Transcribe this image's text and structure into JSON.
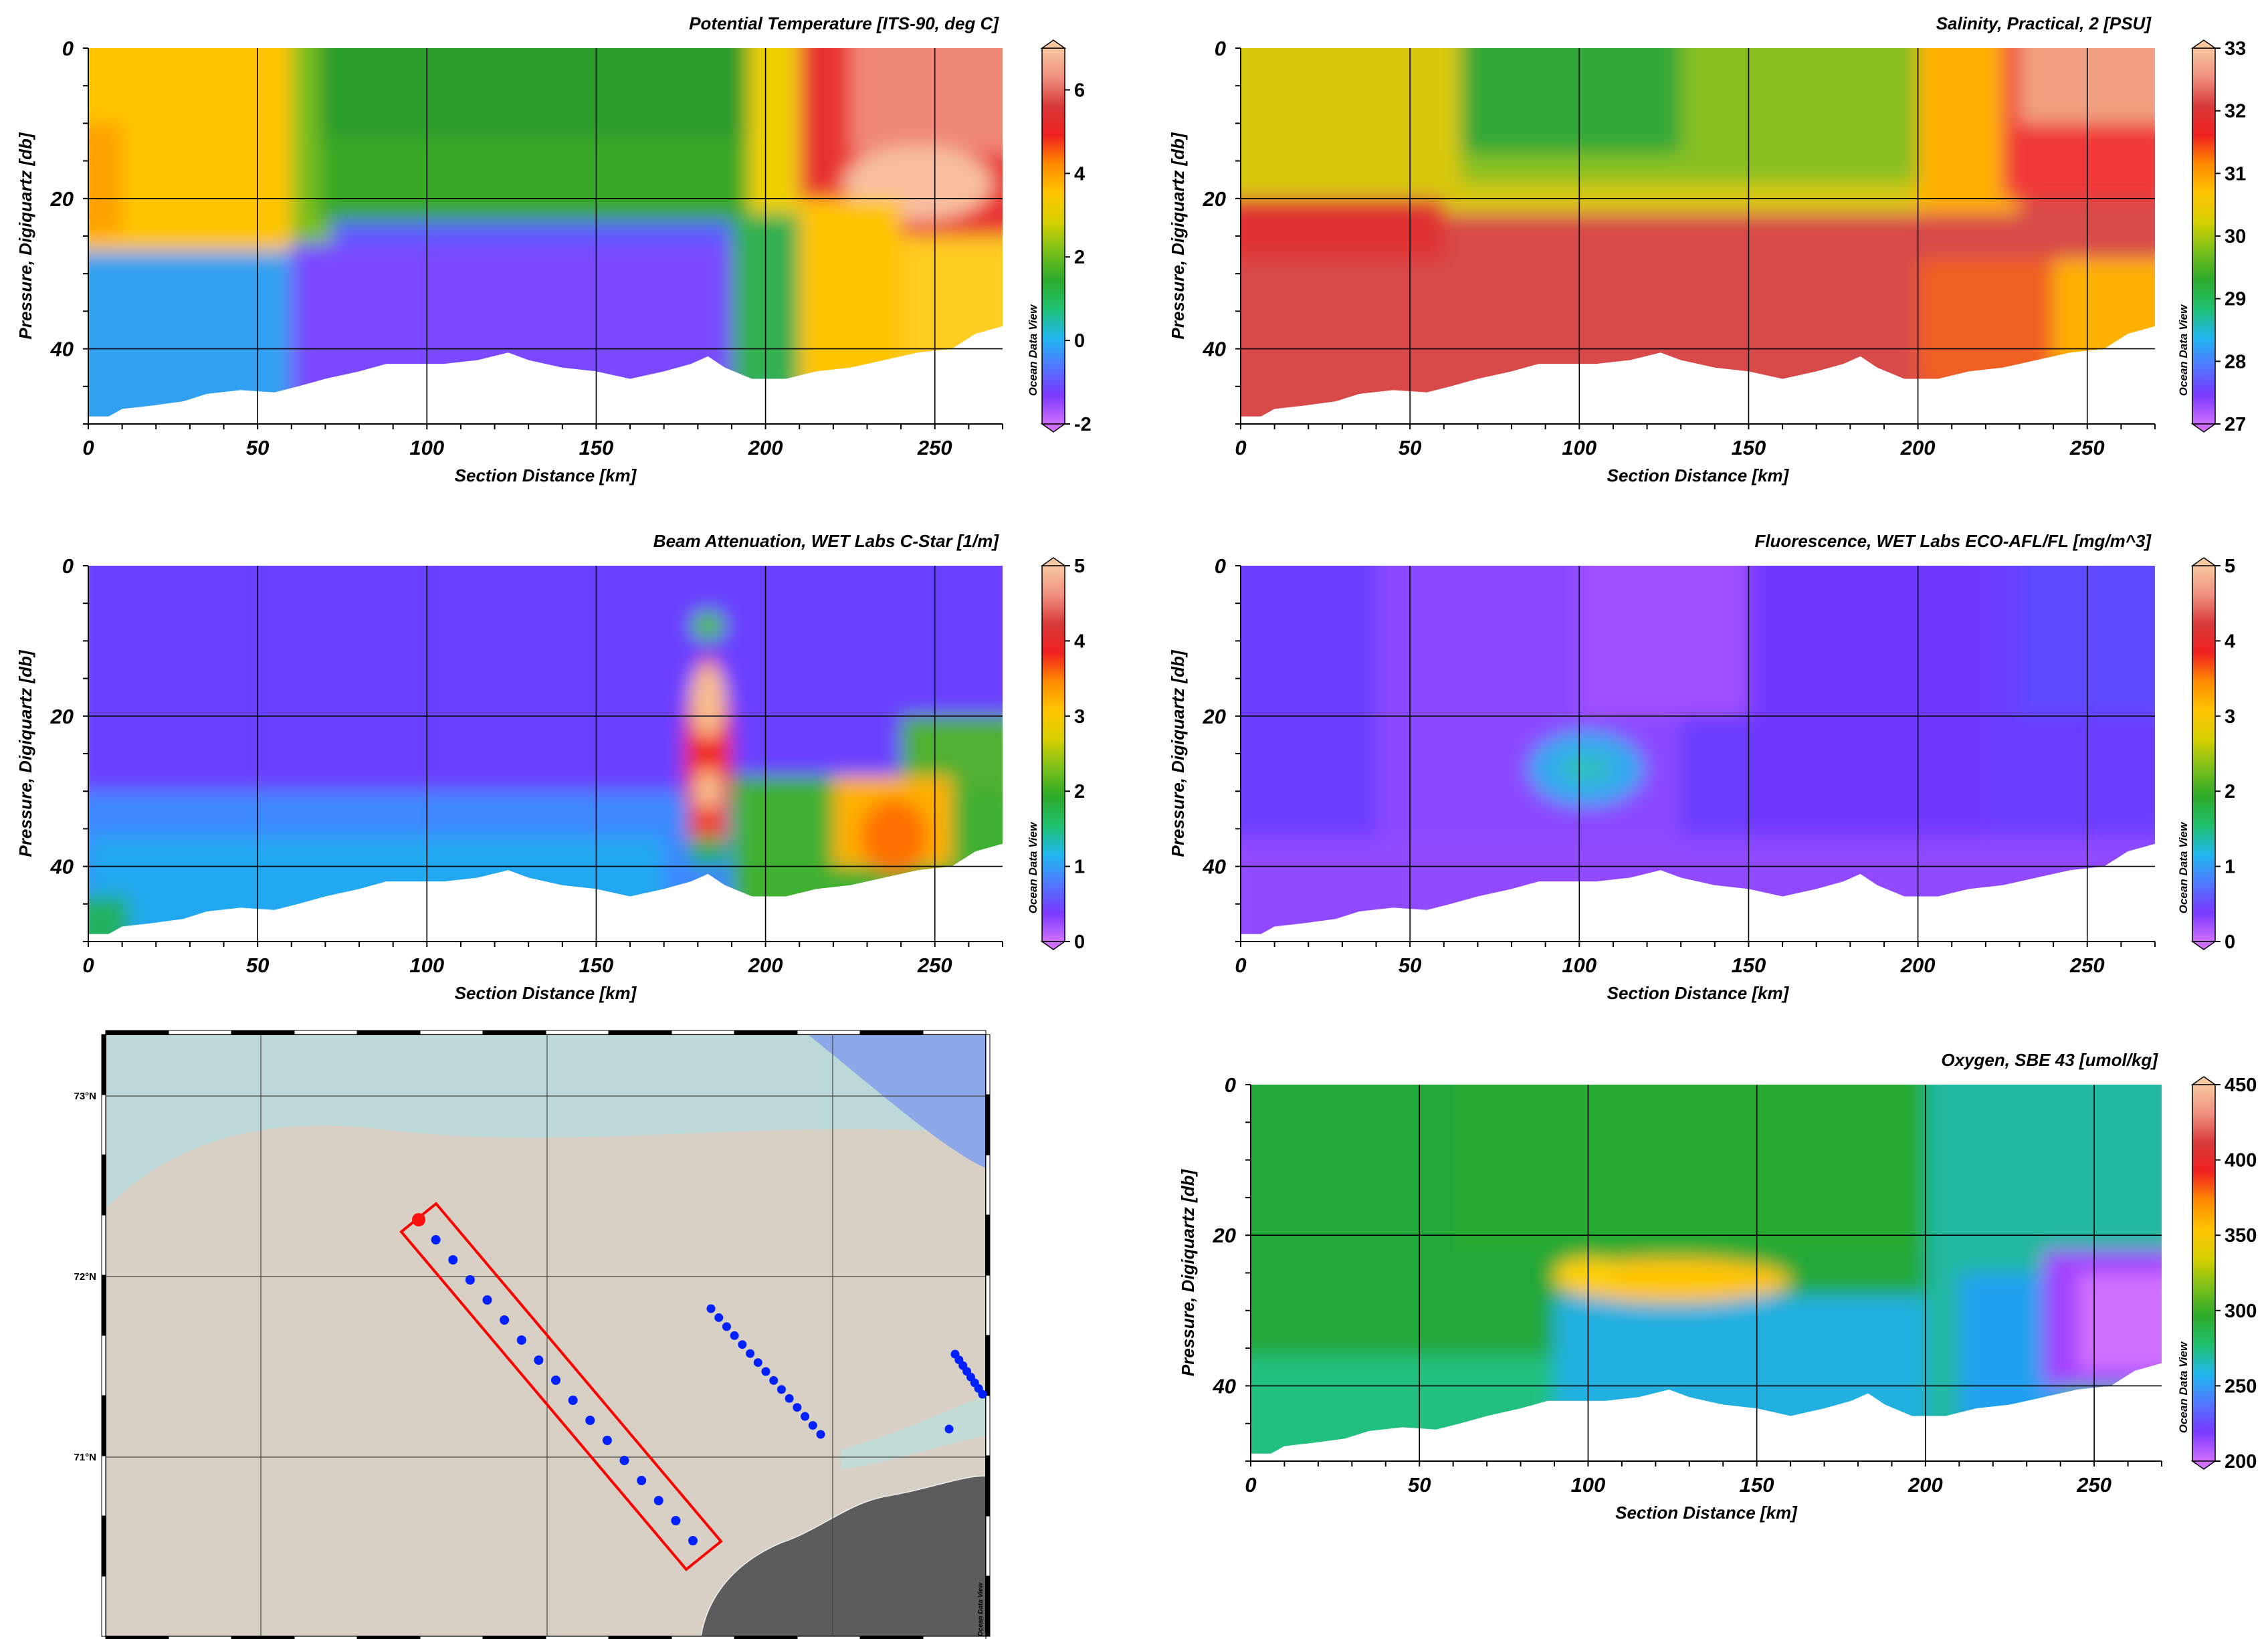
{
  "odv_label": "Ocean Data View",
  "chart_data": [
    {
      "type": "heatmap",
      "title": "Potential Temperature [ITS-90, deg C]",
      "xlabel": "Section Distance [km]",
      "ylabel": "Pressure, Digiquartz [db]",
      "xlim": [
        0,
        270
      ],
      "ylim": [
        50,
        0
      ],
      "xticks": [
        "0",
        "50",
        "100",
        "150",
        "200",
        "250"
      ],
      "yticks": [
        "0",
        "20",
        "40"
      ],
      "colorbar": {
        "min": -2,
        "max": 7,
        "ticks": [
          "-2",
          "0",
          "2",
          "4",
          "6"
        ]
      },
      "grid": true,
      "mixed_layer_depth_db": [
        [
          0,
          26
        ],
        [
          20,
          27
        ],
        [
          50,
          28
        ],
        [
          60,
          30
        ],
        [
          70,
          25
        ],
        [
          90,
          23
        ],
        [
          150,
          22
        ],
        [
          170,
          24
        ],
        [
          190,
          26
        ],
        [
          205,
          30
        ],
        [
          212,
          25
        ]
      ],
      "surface_values_degC": [
        [
          0,
          4.5
        ],
        [
          60,
          4.5
        ],
        [
          70,
          2.2
        ],
        [
          150,
          2.2
        ],
        [
          200,
          2.5
        ],
        [
          210,
          6.0
        ],
        [
          230,
          6.5
        ],
        [
          270,
          6.3
        ]
      ],
      "bottom_values_degC": [
        [
          0,
          0.5
        ],
        [
          50,
          -1.0
        ],
        [
          150,
          -1.2
        ],
        [
          190,
          2.0
        ],
        [
          200,
          2.5
        ],
        [
          210,
          4.5
        ],
        [
          270,
          4.5
        ]
      ]
    },
    {
      "type": "heatmap",
      "title": "Salinity, Practical, 2 [PSU]",
      "xlabel": "Section Distance [km]",
      "ylabel": "Pressure, Digiquartz [db]",
      "xlim": [
        0,
        270
      ],
      "ylim": [
        50,
        0
      ],
      "xticks": [
        "0",
        "50",
        "100",
        "150",
        "200",
        "250"
      ],
      "yticks": [
        "0",
        "20",
        "40"
      ],
      "colorbar": {
        "min": 27,
        "max": 33,
        "ticks": [
          "27",
          "28",
          "29",
          "30",
          "31",
          "32",
          "33"
        ]
      },
      "grid": true,
      "surface_values_psu": [
        [
          0,
          30.8
        ],
        [
          60,
          30.8
        ],
        [
          70,
          30.0
        ],
        [
          150,
          30.2
        ],
        [
          200,
          30.6
        ],
        [
          215,
          31.6
        ],
        [
          240,
          32.4
        ],
        [
          270,
          32.6
        ]
      ],
      "bottom_values_psu": [
        [
          0,
          32.0
        ],
        [
          100,
          32.2
        ],
        [
          200,
          32.0
        ],
        [
          230,
          31.5
        ],
        [
          270,
          31.0
        ]
      ]
    },
    {
      "type": "heatmap",
      "title": "Beam Attenuation, WET Labs C-Star [1/m]",
      "xlabel": "Section Distance [km]",
      "ylabel": "Pressure, Digiquartz [db]",
      "xlim": [
        0,
        270
      ],
      "ylim": [
        50,
        0
      ],
      "xticks": [
        "0",
        "50",
        "100",
        "150",
        "200",
        "250"
      ],
      "yticks": [
        "0",
        "20",
        "40"
      ],
      "colorbar": {
        "min": 0,
        "max": 5,
        "ticks": [
          "0",
          "1",
          "2",
          "3",
          "4",
          "5"
        ]
      },
      "grid": true,
      "features": [
        {
          "name": "",
          "x_km": 183,
          "depth_db": [
            14,
            36
          ],
          "value": 4.8
        },
        {
          "name": "",
          "x_km": 240,
          "depth_db": [
            28,
            38
          ],
          "value": 3.5
        }
      ],
      "background_value": 0.4,
      "bottom_value": 1.2
    },
    {
      "type": "heatmap",
      "title": "Fluorescence, WET Labs ECO-AFL/FL [mg/m^3]",
      "xlabel": "Section Distance [km]",
      "ylabel": "Pressure, Digiquartz [db]",
      "xlim": [
        0,
        270
      ],
      "ylim": [
        50,
        0
      ],
      "xticks": [
        "0",
        "50",
        "100",
        "150",
        "200",
        "250"
      ],
      "yticks": [
        "0",
        "20",
        "40"
      ],
      "colorbar": {
        "min": 0,
        "max": 5,
        "ticks": [
          "0",
          "1",
          "2",
          "3",
          "4",
          "5"
        ]
      },
      "grid": true,
      "features": [
        {
          "name": "",
          "x_km": 102,
          "depth_db": [
            24,
            30
          ],
          "value": 1.3
        }
      ],
      "background_value": 0.4
    },
    {
      "type": "heatmap",
      "title": "Oxygen, SBE 43 [umol/kg]",
      "xlabel": "Section Distance [km]",
      "ylabel": "Pressure, Digiquartz [db]",
      "xlim": [
        0,
        270
      ],
      "ylim": [
        50,
        0
      ],
      "xticks": [
        "0",
        "50",
        "100",
        "150",
        "200",
        "250"
      ],
      "yticks": [
        "0",
        "20",
        "40"
      ],
      "colorbar": {
        "min": 200,
        "max": 450,
        "ticks": [
          "200",
          "250",
          "300",
          "350",
          "400",
          "450"
        ]
      },
      "grid": true,
      "features": [
        {
          "name": "",
          "x_km": 125,
          "depth_db": [
            22,
            28
          ],
          "value": 345
        },
        {
          "name": "",
          "x_km": 250,
          "depth_db": [
            24,
            38
          ],
          "value": 215
        }
      ],
      "background_value": 310,
      "bottom_value": 265
    },
    {
      "type": "map",
      "lat_labels": [
        "73°N",
        "72°N",
        "71°N"
      ],
      "stations_in_box": 17,
      "stations_east_line": 15,
      "stations_far_east": 9,
      "highlighted_station": "first station (red)"
    }
  ]
}
